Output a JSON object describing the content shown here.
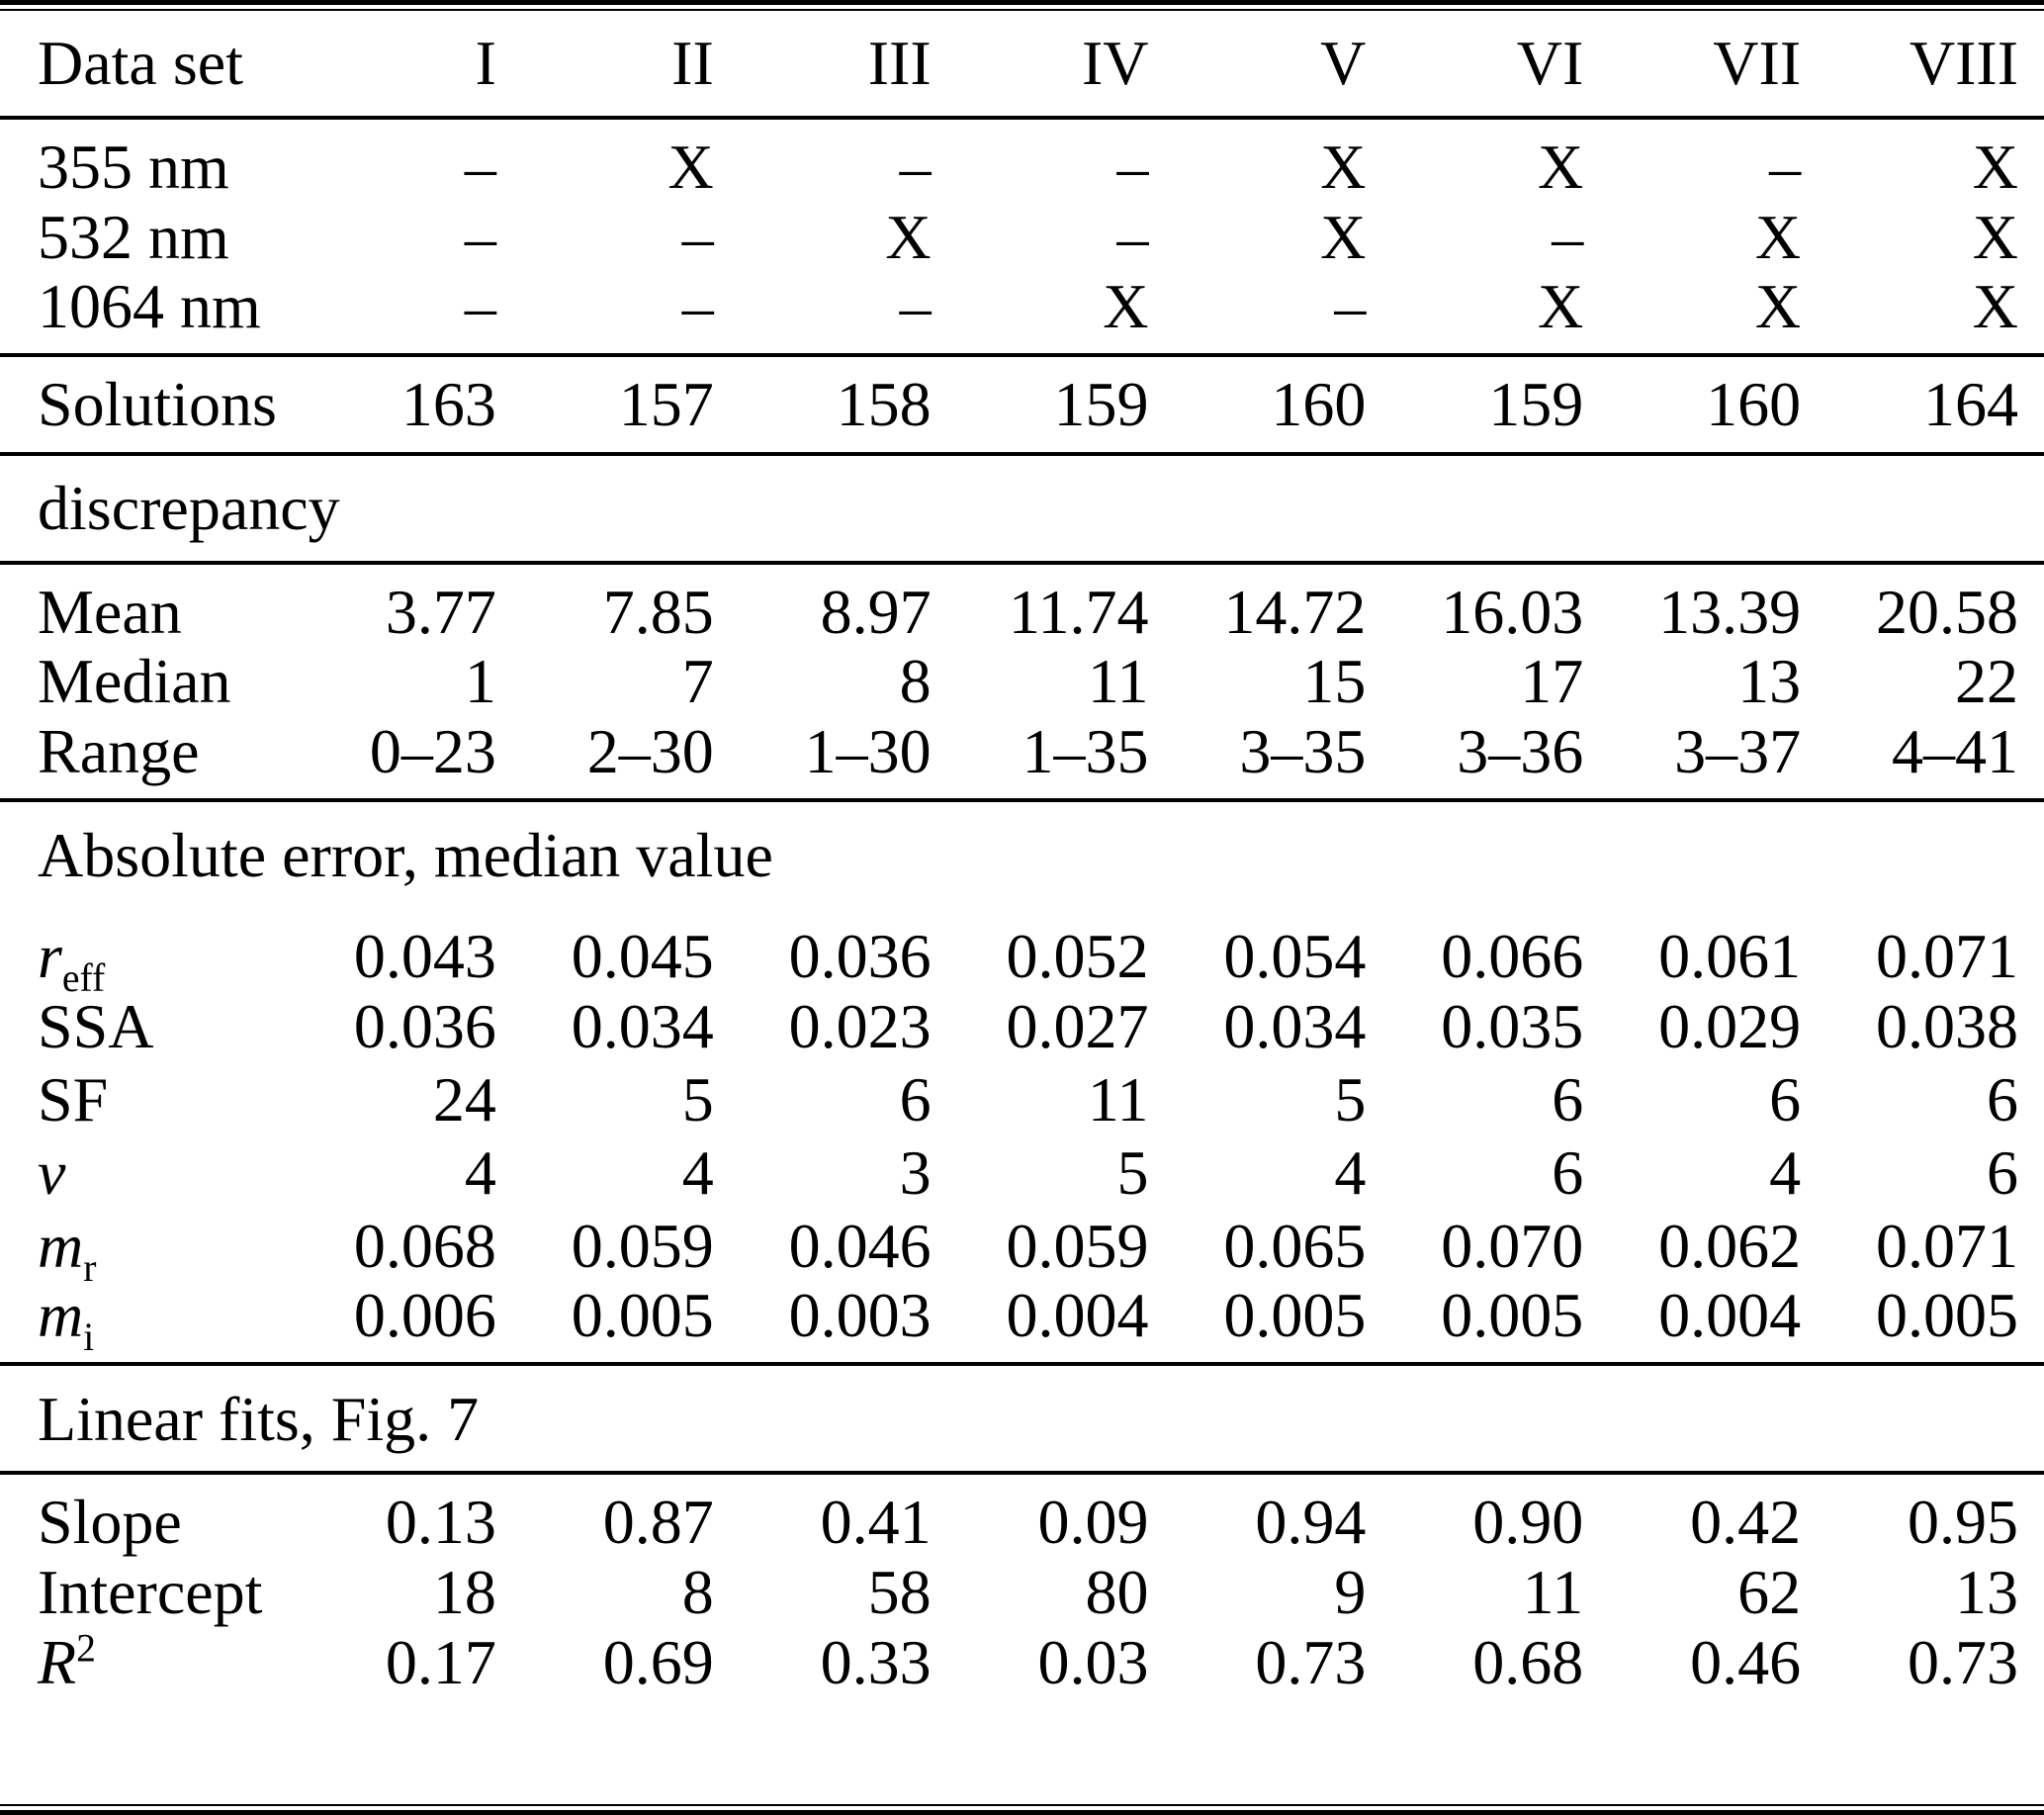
{
  "page": {
    "background": "#ffffff",
    "text_color": "#000000",
    "rule_color": "#000000"
  },
  "table": {
    "header": {
      "label": "Data set",
      "columns": [
        "I",
        "II",
        "III",
        "IV",
        "V",
        "VI",
        "VII",
        "VIII"
      ]
    },
    "sections": [
      {
        "heading": null,
        "rule_below_heading": false,
        "rows": [
          {
            "label": {
              "text": "355 nm",
              "italic": false
            },
            "values": [
              "–",
              "X",
              "–",
              "–",
              "X",
              "X",
              "–",
              "X"
            ]
          },
          {
            "label": {
              "text": "532 nm",
              "italic": false
            },
            "values": [
              "–",
              "–",
              "X",
              "–",
              "X",
              "–",
              "X",
              "X"
            ]
          },
          {
            "label": {
              "text": "1064 nm",
              "italic": false
            },
            "values": [
              "–",
              "–",
              "–",
              "X",
              "–",
              "X",
              "X",
              "X"
            ]
          }
        ]
      },
      {
        "heading": null,
        "rule_below_heading": false,
        "rows": [
          {
            "label": {
              "text": "Solutions",
              "italic": false
            },
            "values": [
              "163",
              "157",
              "158",
              "159",
              "160",
              "159",
              "160",
              "164"
            ]
          }
        ]
      },
      {
        "heading": "discrepancy",
        "rule_below_heading": true,
        "rows": [
          {
            "label": {
              "text": "Mean",
              "italic": false
            },
            "values": [
              "3.77",
              "7.85",
              "8.97",
              "11.74",
              "14.72",
              "16.03",
              "13.39",
              "20.58"
            ]
          },
          {
            "label": {
              "text": "Median",
              "italic": false
            },
            "values": [
              "1",
              "7",
              "8",
              "11",
              "15",
              "17",
              "13",
              "22"
            ]
          },
          {
            "label": {
              "text": "Range",
              "italic": false
            },
            "values": [
              "0–23",
              "2–30",
              "1–30",
              "1–35",
              "3–35",
              "3–36",
              "3–37",
              "4–41"
            ]
          }
        ]
      },
      {
        "heading": "Absolute error, median value",
        "rule_below_heading": false,
        "rows": [
          {
            "label": {
              "text": "r",
              "sub": "eff",
              "italic": true
            },
            "values": [
              "0.043",
              "0.045",
              "0.036",
              "0.052",
              "0.054",
              "0.066",
              "0.061",
              "0.071"
            ]
          },
          {
            "label": {
              "text": "SSA",
              "italic": false
            },
            "values": [
              "0.036",
              "0.034",
              "0.023",
              "0.027",
              "0.034",
              "0.035",
              "0.029",
              "0.038"
            ]
          },
          {
            "label": {
              "text": "SF",
              "italic": false
            },
            "values": [
              "24",
              "5",
              "6",
              "11",
              "5",
              "6",
              "6",
              "6"
            ]
          },
          {
            "label": {
              "text": "v",
              "italic": true
            },
            "values": [
              "4",
              "4",
              "3",
              "5",
              "4",
              "6",
              "4",
              "6"
            ]
          },
          {
            "label": {
              "text": "m",
              "sub": "r",
              "italic": true
            },
            "values": [
              "0.068",
              "0.059",
              "0.046",
              "0.059",
              "0.065",
              "0.070",
              "0.062",
              "0.071"
            ]
          },
          {
            "label": {
              "text": "m",
              "sub": "i",
              "italic": true
            },
            "values": [
              "0.006",
              "0.005",
              "0.003",
              "0.004",
              "0.005",
              "0.005",
              "0.004",
              "0.005"
            ]
          }
        ]
      },
      {
        "heading": "Linear fits, Fig. 7",
        "rule_below_heading": true,
        "rows": [
          {
            "label": {
              "text": "Slope",
              "italic": false
            },
            "values": [
              "0.13",
              "0.87",
              "0.41",
              "0.09",
              "0.94",
              "0.90",
              "0.42",
              "0.95"
            ]
          },
          {
            "label": {
              "text": "Intercept",
              "italic": false
            },
            "values": [
              "18",
              "8",
              "58",
              "80",
              "9",
              "11",
              "62",
              "13"
            ]
          },
          {
            "label": {
              "text": "R",
              "sup": "2",
              "italic": true
            },
            "values": [
              "0.17",
              "0.69",
              "0.33",
              "0.03",
              "0.73",
              "0.68",
              "0.46",
              "0.73"
            ]
          }
        ]
      }
    ]
  }
}
